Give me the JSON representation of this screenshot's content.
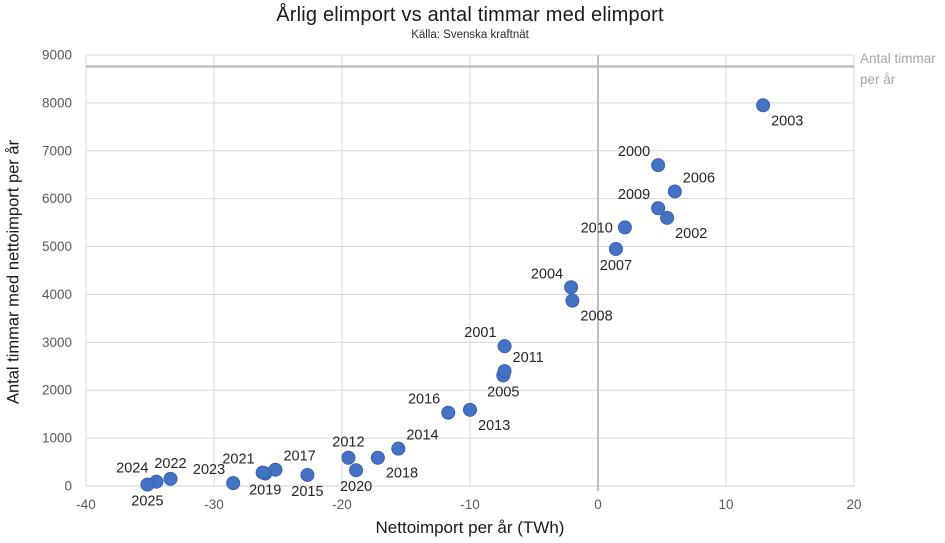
{
  "chart_data": {
    "type": "scatter",
    "title": "Årlig elimport vs antal timmar med elimport",
    "subtitle": "Källa: Svenska kraftnät",
    "xlabel": "Nettoimport per år (TWh)",
    "ylabel": "Antal timmar med nettoimport per år",
    "xlim": [
      -40,
      20
    ],
    "ylim": [
      0,
      9000
    ],
    "x_ticks": [
      -40,
      -30,
      -20,
      -10,
      0,
      10,
      20
    ],
    "y_ticks": [
      0,
      1000,
      2000,
      3000,
      4000,
      5000,
      6000,
      7000,
      8000,
      9000
    ],
    "grid": true,
    "legend": "none",
    "reference_lines": [
      {
        "orientation": "horizontal",
        "value": 8760,
        "label": "Antal timmar\nper år",
        "width": 2.5
      },
      {
        "orientation": "vertical",
        "value": 0,
        "label": "",
        "width": 2
      }
    ],
    "points": [
      {
        "label": "2000",
        "x": 4.7,
        "y": 6700,
        "label_pos": "al"
      },
      {
        "label": "2001",
        "x": -7.3,
        "y": 2920,
        "label_pos": "al"
      },
      {
        "label": "2002",
        "x": 5.4,
        "y": 5600,
        "label_pos": "br"
      },
      {
        "label": "2003",
        "x": 12.9,
        "y": 7950,
        "label_pos": "br"
      },
      {
        "label": "2004",
        "x": -2.1,
        "y": 4150,
        "label_pos": "al"
      },
      {
        "label": "2005",
        "x": -7.4,
        "y": 2310,
        "label_pos": "b"
      },
      {
        "label": "2006",
        "x": 6.0,
        "y": 6150,
        "label_pos": "ar"
      },
      {
        "label": "2007",
        "x": 1.4,
        "y": 4950,
        "label_pos": "b"
      },
      {
        "label": "2008",
        "x": -2.0,
        "y": 3870,
        "label_pos": "br"
      },
      {
        "label": "2009",
        "x": 4.7,
        "y": 5800,
        "label_pos": "al"
      },
      {
        "label": "2010",
        "x": 2.1,
        "y": 5400,
        "label_pos": "l"
      },
      {
        "label": "2011",
        "x": -7.3,
        "y": 2400,
        "label_pos": "ar"
      },
      {
        "label": "2012",
        "x": -19.5,
        "y": 590,
        "label_pos": "a"
      },
      {
        "label": "2013",
        "x": -10.0,
        "y": 1590,
        "label_pos": "br"
      },
      {
        "label": "2014",
        "x": -15.6,
        "y": 780,
        "label_pos": "ar"
      },
      {
        "label": "2015",
        "x": -22.7,
        "y": 230,
        "label_pos": "b"
      },
      {
        "label": "2016",
        "x": -11.7,
        "y": 1530,
        "label_pos": "al"
      },
      {
        "label": "2017",
        "x": -25.2,
        "y": 340,
        "label_pos": "ar"
      },
      {
        "label": "2018",
        "x": -17.2,
        "y": 590,
        "label_pos": "br"
      },
      {
        "label": "2019",
        "x": -26.0,
        "y": 260,
        "label_pos": "b"
      },
      {
        "label": "2020",
        "x": -18.9,
        "y": 330,
        "label_pos": "b"
      },
      {
        "label": "2021",
        "x": -26.2,
        "y": 280,
        "label_pos": "al"
      },
      {
        "label": "2022",
        "x": -33.4,
        "y": 150,
        "label_pos": "a"
      },
      {
        "label": "2023",
        "x": -28.5,
        "y": 60,
        "label_pos": "al"
      },
      {
        "label": "2024",
        "x": -34.5,
        "y": 90,
        "label_pos": "al"
      },
      {
        "label": "2025",
        "x": -35.2,
        "y": 30,
        "label_pos": "b"
      }
    ],
    "colors": {
      "marker": "#4472C4",
      "marker_edge": "#3A62AD",
      "gridline": "#D9D9D9",
      "axis_line": "#CFCFCF",
      "reference_line": "#BFBFBF",
      "tick_label": "#595959",
      "data_label": "#262626",
      "ref_label": "#A6A6A6",
      "background": "#FFFFFF"
    }
  }
}
